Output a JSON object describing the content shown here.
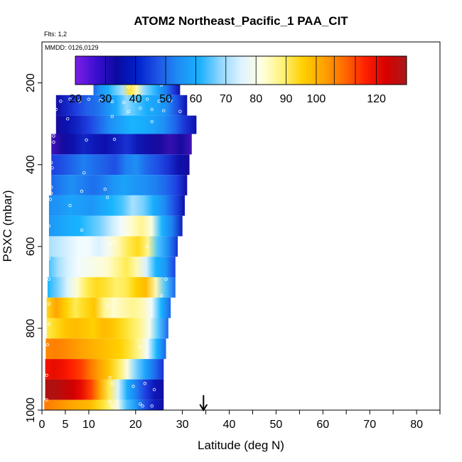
{
  "chart_data": {
    "type": "heatmap",
    "title": "ATOM2 Northeast_Pacific_1 PAA_CIT",
    "subtitle_lines": [
      "Flts: 1,2",
      "MMDD: 0126,0129"
    ],
    "xlabel": "Latitude (deg N)",
    "ylabel": "PSXC (mbar)",
    "xlim": [
      0,
      85
    ],
    "ylim": [
      1000,
      100
    ],
    "x_ticks": [
      0,
      5,
      10,
      20,
      30,
      40,
      50,
      60,
      70,
      80
    ],
    "y_ticks": [
      200,
      400,
      600,
      800,
      1000
    ],
    "grid": false,
    "marker_arrow_x": 34.5,
    "colorbar": {
      "min": 20,
      "max": 130,
      "colors": [
        "#7d1fe6",
        "#3b0fd0",
        "#0a0aa0",
        "#0022cc",
        "#1f55e6",
        "#1e8ff5",
        "#1ab0ff",
        "#8fd6ff",
        "#ddf3ff",
        "#ffffe0",
        "#fff27a",
        "#ffd000",
        "#ffa200",
        "#ff6a00",
        "#ff2000",
        "#d80000",
        "#a81a1a"
      ],
      "tick_values": [
        20,
        30,
        40,
        50,
        60,
        70,
        80,
        90,
        100,
        120
      ],
      "tick_labels": [
        "20",
        "30",
        "40",
        "50",
        "60",
        "70",
        "80",
        "90",
        "100",
        "120"
      ],
      "divisions": [
        20,
        30,
        40,
        50,
        60,
        70,
        80,
        90,
        100,
        106,
        113,
        120,
        130
      ]
    },
    "value_stops": [
      {
        "v": 20,
        "c": "#7d1fe6"
      },
      {
        "v": 27,
        "c": "#1a0a9a"
      },
      {
        "v": 33,
        "c": "#0a12b0"
      },
      {
        "v": 40,
        "c": "#1f3fe0"
      },
      {
        "v": 50,
        "c": "#1e8ff5"
      },
      {
        "v": 60,
        "c": "#18b4ff"
      },
      {
        "v": 66,
        "c": "#a8e0ff"
      },
      {
        "v": 72,
        "c": "#f2fbff"
      },
      {
        "v": 78,
        "c": "#fffcd0"
      },
      {
        "v": 85,
        "c": "#ffef60"
      },
      {
        "v": 92,
        "c": "#ffd000"
      },
      {
        "v": 100,
        "c": "#ffa500"
      },
      {
        "v": 108,
        "c": "#ff6a00"
      },
      {
        "v": 116,
        "c": "#ff1800"
      },
      {
        "v": 124,
        "c": "#d00000"
      },
      {
        "v": 130,
        "c": "#a01818"
      }
    ],
    "bands": [
      {
        "p_top": 180,
        "p_bot": 230,
        "lat_start": 11,
        "lat_end": 29.5,
        "v": [
          45,
          52,
          58,
          63,
          66,
          88,
          80,
          65,
          62,
          55,
          48,
          40,
          30
        ]
      },
      {
        "p_top": 230,
        "p_bot": 280,
        "lat_start": 3,
        "lat_end": 31,
        "v": [
          30,
          36,
          40,
          44,
          46,
          50,
          58,
          65,
          62,
          58,
          55,
          50,
          42,
          32
        ]
      },
      {
        "p_top": 280,
        "p_bot": 325,
        "lat_start": 3,
        "lat_end": 33,
        "v": [
          28,
          33,
          36,
          40,
          45,
          50,
          55,
          60,
          58,
          55,
          50,
          45,
          38,
          32
        ]
      },
      {
        "p_top": 325,
        "p_bot": 375,
        "lat_start": 2,
        "lat_end": 32,
        "v": [
          24,
          28,
          32,
          36,
          34,
          32,
          35,
          38,
          34,
          30,
          28,
          25,
          28,
          24
        ]
      },
      {
        "p_top": 375,
        "p_bot": 425,
        "lat_start": 2,
        "lat_end": 31.5,
        "v": [
          40,
          42,
          45,
          48,
          46,
          44,
          42,
          48,
          50,
          45,
          42,
          38,
          32,
          28
        ]
      },
      {
        "p_top": 425,
        "p_bot": 475,
        "lat_start": 2,
        "lat_end": 31,
        "v": [
          45,
          48,
          50,
          48,
          46,
          48,
          52,
          55,
          52,
          50,
          48,
          45,
          40,
          30
        ]
      },
      {
        "p_top": 475,
        "p_bot": 525,
        "lat_start": 1.5,
        "lat_end": 30.5,
        "v": [
          50,
          52,
          55,
          54,
          52,
          56,
          60,
          62,
          66,
          64,
          58,
          50,
          42,
          32
        ]
      },
      {
        "p_top": 525,
        "p_bot": 575,
        "lat_start": 1.5,
        "lat_end": 30,
        "v": [
          52,
          55,
          58,
          60,
          62,
          64,
          68,
          72,
          78,
          82,
          76,
          60,
          48,
          35
        ]
      },
      {
        "p_top": 575,
        "p_bot": 625,
        "lat_start": 1.5,
        "lat_end": 29,
        "v": [
          66,
          68,
          70,
          72,
          72,
          70,
          74,
          80,
          86,
          90,
          82,
          62,
          50,
          38
        ]
      },
      {
        "p_top": 625,
        "p_bot": 675,
        "lat_start": 1.5,
        "lat_end": 28.5,
        "v": [
          62,
          66,
          70,
          72,
          74,
          76,
          78,
          82,
          86,
          80,
          70,
          60,
          52,
          40
        ]
      },
      {
        "p_top": 675,
        "p_bot": 725,
        "lat_start": 1.2,
        "lat_end": 28.5,
        "v": [
          60,
          64,
          70,
          78,
          86,
          90,
          88,
          84,
          86,
          92,
          96,
          80,
          62,
          45
        ]
      },
      {
        "p_top": 725,
        "p_bot": 775,
        "lat_start": 1,
        "lat_end": 27.5,
        "v": [
          90,
          100,
          92,
          86,
          90,
          94,
          82,
          78,
          80,
          82,
          80,
          72,
          60,
          45
        ]
      },
      {
        "p_top": 775,
        "p_bot": 825,
        "lat_start": 1,
        "lat_end": 27,
        "v": [
          86,
          90,
          94,
          96,
          94,
          92,
          96,
          94,
          90,
          86,
          82,
          74,
          62,
          45
        ]
      },
      {
        "p_top": 825,
        "p_bot": 875,
        "lat_start": 0.8,
        "lat_end": 26.5,
        "v": [
          104,
          105,
          104,
          102,
          100,
          98,
          96,
          94,
          92,
          88,
          82,
          72,
          60,
          45
        ]
      },
      {
        "p_top": 875,
        "p_bot": 925,
        "lat_start": 0.7,
        "lat_end": 26,
        "v": [
          118,
          120,
          118,
          115,
          112,
          106,
          100,
          94,
          86,
          76,
          64,
          55,
          46,
          38
        ]
      },
      {
        "p_top": 925,
        "p_bot": 975,
        "lat_start": 0.7,
        "lat_end": 26,
        "v": [
          128,
          128,
          126,
          124,
          120,
          112,
          100,
          86,
          70,
          58,
          48,
          40,
          34,
          30
        ]
      },
      {
        "p_top": 975,
        "p_bot": 1000,
        "lat_start": 0.5,
        "lat_end": 26,
        "v": [
          106,
          104,
          102,
          100,
          98,
          96,
          90,
          84,
          74,
          62,
          52,
          42,
          35,
          30
        ]
      }
    ],
    "samples": [
      {
        "lat": 17.5,
        "p": 200
      },
      {
        "lat": 18.5,
        "p": 210
      },
      {
        "lat": 25.5,
        "p": 205
      },
      {
        "lat": 28.5,
        "p": 192
      },
      {
        "lat": 4.0,
        "p": 245
      },
      {
        "lat": 6.0,
        "p": 240
      },
      {
        "lat": 8.0,
        "p": 245
      },
      {
        "lat": 10.0,
        "p": 240
      },
      {
        "lat": 12.5,
        "p": 243
      },
      {
        "lat": 15.0,
        "p": 246
      },
      {
        "lat": 17.5,
        "p": 248
      },
      {
        "lat": 20.0,
        "p": 244
      },
      {
        "lat": 22.5,
        "p": 240
      },
      {
        "lat": 25.0,
        "p": 245
      },
      {
        "lat": 27.5,
        "p": 243
      },
      {
        "lat": 3.0,
        "p": 265
      },
      {
        "lat": 18.5,
        "p": 270
      },
      {
        "lat": 21.0,
        "p": 262
      },
      {
        "lat": 23.5,
        "p": 265
      },
      {
        "lat": 26.0,
        "p": 268
      },
      {
        "lat": 29.5,
        "p": 270
      },
      {
        "lat": 5.5,
        "p": 288
      },
      {
        "lat": 15.0,
        "p": 282
      },
      {
        "lat": 23.5,
        "p": 295
      },
      {
        "lat": 2.5,
        "p": 330
      },
      {
        "lat": 2.5,
        "p": 345
      },
      {
        "lat": 9.5,
        "p": 340
      },
      {
        "lat": 15.5,
        "p": 338
      },
      {
        "lat": 2.0,
        "p": 395
      },
      {
        "lat": 2.2,
        "p": 408
      },
      {
        "lat": 9.0,
        "p": 420
      },
      {
        "lat": 2.0,
        "p": 455
      },
      {
        "lat": 2.0,
        "p": 470
      },
      {
        "lat": 8.5,
        "p": 465
      },
      {
        "lat": 13.5,
        "p": 460
      },
      {
        "lat": 1.8,
        "p": 485
      },
      {
        "lat": 6.0,
        "p": 500
      },
      {
        "lat": 14.0,
        "p": 480
      },
      {
        "lat": 1.5,
        "p": 550
      },
      {
        "lat": 8.5,
        "p": 560
      },
      {
        "lat": 14.5,
        "p": 595
      },
      {
        "lat": 15.5,
        "p": 590
      },
      {
        "lat": 22.5,
        "p": 600
      },
      {
        "lat": 1.5,
        "p": 630
      },
      {
        "lat": 1.5,
        "p": 680
      },
      {
        "lat": 26.5,
        "p": 680
      },
      {
        "lat": 1.5,
        "p": 740
      },
      {
        "lat": 14.0,
        "p": 745
      },
      {
        "lat": 25.5,
        "p": 720
      },
      {
        "lat": 1.5,
        "p": 790
      },
      {
        "lat": 1.2,
        "p": 840
      },
      {
        "lat": 21.0,
        "p": 845
      },
      {
        "lat": 1.0,
        "p": 915
      },
      {
        "lat": 14.5,
        "p": 920
      },
      {
        "lat": 15.0,
        "p": 935
      },
      {
        "lat": 19.5,
        "p": 942
      },
      {
        "lat": 22.0,
        "p": 935
      },
      {
        "lat": 24.0,
        "p": 950
      },
      {
        "lat": 1.0,
        "p": 975
      },
      {
        "lat": 14.5,
        "p": 980
      },
      {
        "lat": 15.0,
        "p": 990
      },
      {
        "lat": 21.0,
        "p": 985
      },
      {
        "lat": 21.5,
        "p": 990
      },
      {
        "lat": 23.5,
        "p": 990
      }
    ]
  }
}
